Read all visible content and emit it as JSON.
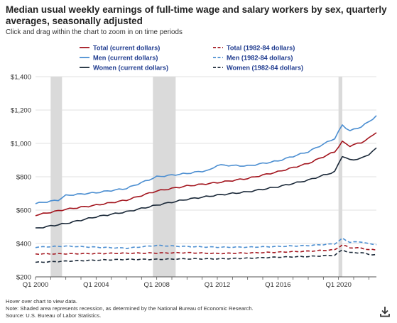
{
  "header": {
    "title": "Median usual weekly earnings of full-time wage and salary workers by sex, quarterly averages, seasonally adjusted",
    "instruction": "Click and drag within the chart to zoom in on time periods"
  },
  "footer": {
    "hover": "Hover over chart to view data.",
    "note": "Note: Shaded area represents recession, as determined by the National Bureau of Economic Research.",
    "source": "Source: U.S. Bureau of Labor Statistics."
  },
  "icons": {
    "download": "download-icon"
  },
  "chart_data": {
    "type": "line",
    "title": "Median usual weekly earnings of full-time wage and salary workers by sex, quarterly averages, seasonally adjusted",
    "xlabel": "",
    "ylabel": "",
    "x_start": 2000.0,
    "x_step": 0.25,
    "xlim": [
      2000.0,
      2022.5
    ],
    "ylim": [
      200,
      1400
    ],
    "y_ticks": [
      200,
      400,
      600,
      800,
      1000,
      1200,
      1400
    ],
    "y_tick_labels": [
      "$200",
      "$400",
      "$600",
      "$800",
      "$1,000",
      "$1,200",
      "$1,400"
    ],
    "x_ticks": [
      2000,
      2004,
      2008,
      2012,
      2016,
      2020
    ],
    "x_tick_labels": [
      "Q1 2000",
      "Q1 2004",
      "Q1 2008",
      "Q1 2012",
      "Q1 2016",
      "Q1 2020"
    ],
    "grid": true,
    "legend_position": "top",
    "recessions": [
      [
        2001.0,
        2001.75
      ],
      [
        2007.75,
        2009.25
      ],
      [
        2020.0,
        2020.25
      ]
    ],
    "series": [
      {
        "name": "Total (current dollars)",
        "color": "#a3151e",
        "dash": false,
        "anchors": [
          [
            2000,
            570
          ],
          [
            2002,
            605
          ],
          [
            2004,
            630
          ],
          [
            2006,
            660
          ],
          [
            2008,
            715
          ],
          [
            2010,
            745
          ],
          [
            2012,
            765
          ],
          [
            2014,
            790
          ],
          [
            2016,
            830
          ],
          [
            2018,
            880
          ],
          [
            2019.75,
            950
          ],
          [
            2020.25,
            1010
          ],
          [
            2020.75,
            985
          ],
          [
            2021.5,
            1005
          ],
          [
            2022.0,
            1030
          ],
          [
            2022.5,
            1068
          ]
        ]
      },
      {
        "name": "Men (current dollars)",
        "color": "#4b8ed1",
        "dash": false,
        "anchors": [
          [
            2000,
            640
          ],
          [
            2001.5,
            660
          ],
          [
            2002,
            688
          ],
          [
            2004,
            705
          ],
          [
            2006,
            730
          ],
          [
            2008,
            800
          ],
          [
            2010,
            820
          ],
          [
            2011.5,
            840
          ],
          [
            2012,
            870
          ],
          [
            2014,
            865
          ],
          [
            2016,
            895
          ],
          [
            2018,
            950
          ],
          [
            2019.75,
            1030
          ],
          [
            2020.25,
            1110
          ],
          [
            2020.75,
            1075
          ],
          [
            2021.5,
            1100
          ],
          [
            2022.0,
            1130
          ],
          [
            2022.5,
            1165
          ]
        ]
      },
      {
        "name": "Women (current dollars)",
        "color": "#1a2838",
        "dash": false,
        "anchors": [
          [
            2000,
            490
          ],
          [
            2002,
            520
          ],
          [
            2004,
            560
          ],
          [
            2006,
            590
          ],
          [
            2008,
            630
          ],
          [
            2010,
            665
          ],
          [
            2012,
            690
          ],
          [
            2014,
            710
          ],
          [
            2016,
            740
          ],
          [
            2018,
            780
          ],
          [
            2019.75,
            830
          ],
          [
            2020.25,
            925
          ],
          [
            2020.75,
            900
          ],
          [
            2021.5,
            910
          ],
          [
            2022.0,
            935
          ],
          [
            2022.5,
            970
          ]
        ]
      },
      {
        "name": "Total (1982-84 dollars)",
        "color": "#a3151e",
        "dash": true,
        "anchors": [
          [
            2000,
            337
          ],
          [
            2004,
            340
          ],
          [
            2008,
            343
          ],
          [
            2010,
            345
          ],
          [
            2012,
            340
          ],
          [
            2014,
            343
          ],
          [
            2016,
            348
          ],
          [
            2018,
            354
          ],
          [
            2019.75,
            362
          ],
          [
            2020.25,
            392
          ],
          [
            2020.75,
            375
          ],
          [
            2021.5,
            372
          ],
          [
            2022.0,
            363
          ],
          [
            2022.5,
            362
          ]
        ]
      },
      {
        "name": "Men (1982-84 dollars)",
        "color": "#4b8ed1",
        "dash": true,
        "anchors": [
          [
            2000,
            378
          ],
          [
            2002,
            384
          ],
          [
            2004,
            378
          ],
          [
            2006,
            372
          ],
          [
            2008,
            388
          ],
          [
            2010,
            382
          ],
          [
            2012,
            378
          ],
          [
            2014,
            378
          ],
          [
            2016,
            382
          ],
          [
            2018,
            388
          ],
          [
            2019.75,
            398
          ],
          [
            2020.25,
            430
          ],
          [
            2020.75,
            408
          ],
          [
            2021.5,
            410
          ],
          [
            2022.0,
            398
          ],
          [
            2022.5,
            395
          ]
        ]
      },
      {
        "name": "Women (1982-84 dollars)",
        "color": "#1a2838",
        "dash": true,
        "anchors": [
          [
            2000,
            287
          ],
          [
            2002,
            294
          ],
          [
            2004,
            300
          ],
          [
            2006,
            305
          ],
          [
            2008,
            305
          ],
          [
            2010,
            308
          ],
          [
            2012,
            308
          ],
          [
            2014,
            312
          ],
          [
            2016,
            318
          ],
          [
            2018,
            322
          ],
          [
            2019.75,
            330
          ],
          [
            2020.25,
            362
          ],
          [
            2020.75,
            345
          ],
          [
            2021.5,
            345
          ],
          [
            2022.0,
            335
          ],
          [
            2022.5,
            332
          ]
        ]
      }
    ]
  }
}
